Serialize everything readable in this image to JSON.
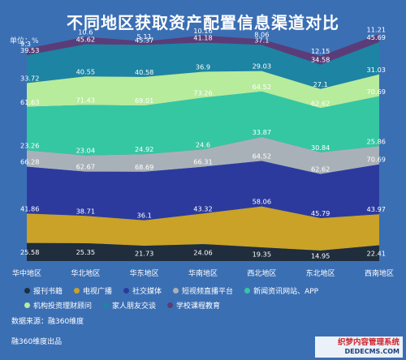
{
  "chart_data": {
    "type": "area",
    "title": "不同地区获取资产配置信息渠道对比",
    "unit_label": "单位：%",
    "categories": [
      "华中地区",
      "华北地区",
      "华东地区",
      "华南地区",
      "西北地区",
      "东北地区",
      "西南地区"
    ],
    "series": [
      {
        "name": "报刊书籍",
        "color": "#1f2d3d",
        "values": [
          25.58,
          25.35,
          21.73,
          24.06,
          19.35,
          14.95,
          22.41
        ]
      },
      {
        "name": "电视广播",
        "color": "#c9a227",
        "values": [
          41.86,
          38.71,
          36.1,
          43.32,
          58.06,
          45.79,
          43.97
        ]
      },
      {
        "name": "社交媒体",
        "color": "#2c3a9e",
        "values": [
          66.28,
          62.67,
          68.69,
          66.31,
          64.52,
          62.62,
          70.69
        ]
      },
      {
        "name": "短视频直播平台",
        "color": "#a9b1b8",
        "values": [
          23.26,
          23.04,
          24.92,
          24.6,
          33.87,
          30.84,
          25.86
        ]
      },
      {
        "name": "新闻资讯网站、APP",
        "color": "#35c7a2",
        "values": [
          61.63,
          71.43,
          69.01,
          73.26,
          64.52,
          62.62,
          70.69
        ]
      },
      {
        "name": "机构投资理财顾问",
        "color": "#b6ec9c",
        "values": [
          33.72,
          40.55,
          40.58,
          36.9,
          29.03,
          27.1,
          31.03
        ]
      },
      {
        "name": "家人朋友交谈",
        "color": "#1d84a3",
        "values": [
          39.53,
          45.62,
          45.37,
          41.18,
          37.1,
          34.58,
          45.69
        ]
      },
      {
        "name": "学校课程教育",
        "color": "#5a3d78",
        "values": [
          9.3,
          10.6,
          5.11,
          10.16,
          8.06,
          12.15,
          11.21
        ]
      }
    ],
    "stacked": true
  },
  "legend_rows": [
    [
      0,
      1,
      2,
      3,
      4
    ],
    [
      5,
      6,
      7
    ]
  ],
  "footer": {
    "source": "数据来源：融360维度",
    "producer": "融360维度出品"
  },
  "watermark": {
    "line1": "织梦内容管理系统",
    "line2": "DEDECMS.COM"
  }
}
